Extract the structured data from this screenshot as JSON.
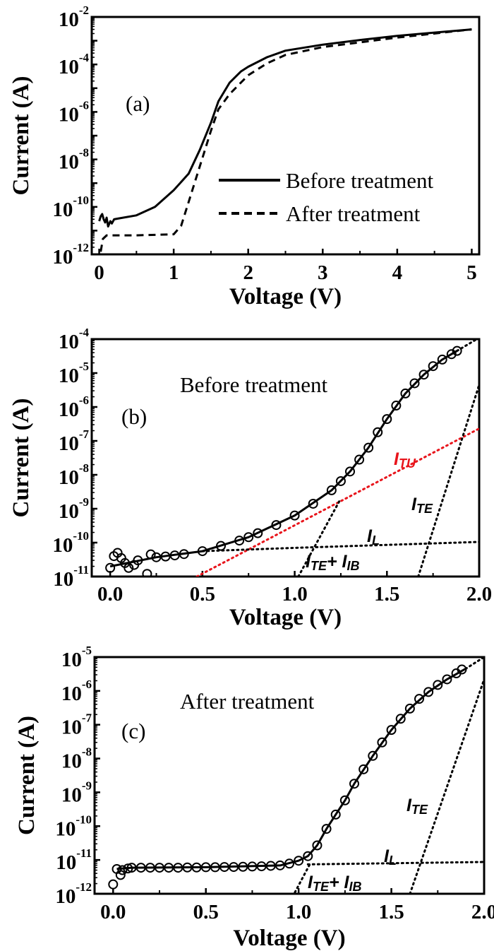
{
  "chart_data": [
    {
      "panel": "(a)",
      "type": "line",
      "xlabel": "Voltage (V)",
      "ylabel": "Current (A)",
      "xlim": [
        -0.1,
        5.1
      ],
      "ylim": [
        1e-12,
        0.01
      ],
      "yscale": "log",
      "xticks": [
        0,
        1,
        2,
        3,
        4,
        5
      ],
      "xtick_labels": [
        "0",
        "1",
        "2",
        "3",
        "4",
        "5"
      ],
      "yticks_exp": [
        -2,
        -4,
        -6,
        -8,
        -10,
        -12
      ],
      "grid": false,
      "legend": {
        "placement": "right-middle",
        "entries": [
          "Before treatment",
          "After treatment"
        ]
      },
      "series": [
        {
          "name": "Before treatment",
          "style": "solid",
          "color": "#000000",
          "x": [
            0.0,
            0.02,
            0.04,
            0.06,
            0.08,
            0.1,
            0.12,
            0.15,
            0.17,
            0.2,
            0.25,
            0.5,
            0.75,
            1.0,
            1.2,
            1.35,
            1.5,
            1.6,
            1.75,
            1.9,
            2.0,
            2.25,
            2.5,
            3.0,
            3.5,
            4.0,
            4.5,
            5.0
          ],
          "y": [
            2.5e-11,
            4e-11,
            5e-11,
            3e-11,
            2.2e-11,
            3.5e-11,
            1.5e-11,
            2.5e-11,
            2e-11,
            3e-11,
            3.2e-11,
            4.4e-11,
            1e-10,
            5e-10,
            2.5e-09,
            2.5e-08,
            3.5e-07,
            2.8e-06,
            1.7e-05,
            5e-05,
            8e-05,
            0.0002,
            0.00038,
            0.00068,
            0.00107,
            0.0016,
            0.0022,
            0.003
          ]
        },
        {
          "name": "After treatment",
          "style": "dashed",
          "color": "#000000",
          "x": [
            0.02,
            0.05,
            0.1,
            0.5,
            1.0,
            1.1,
            1.2,
            1.3,
            1.4,
            1.5,
            1.6,
            1.75,
            1.9,
            2.0,
            2.25,
            2.5,
            3.0,
            4.0,
            5.0
          ],
          "y": [
            1.3e-12,
            4.5e-12,
            6.3e-12,
            6.3e-12,
            7e-12,
            1.6e-11,
            1.6e-10,
            1.6e-09,
            1.6e-08,
            1.6e-07,
            1.3e-06,
            5.6e-06,
            1.7e-05,
            3.5e-05,
            0.00011,
            0.00025,
            0.00054,
            0.00135,
            0.003
          ]
        }
      ]
    },
    {
      "panel": "(b)",
      "type": "scatter",
      "title": "Before treatment",
      "xlabel": "Voltage (V)",
      "ylabel": "Current (A)",
      "xlim": [
        -0.1,
        2.0
      ],
      "ylim": [
        1e-11,
        0.0001
      ],
      "yscale": "log",
      "xticks": [
        0.0,
        0.5,
        1.0,
        1.5,
        2.0
      ],
      "xtick_labels": [
        "0.0",
        "0.5",
        "1.0",
        "1.5",
        "2.0"
      ],
      "yticks_exp": [
        -4,
        -5,
        -6,
        -7,
        -8,
        -9,
        -10,
        -11
      ],
      "grid": false,
      "measured": {
        "marker": "open-circle",
        "x": [
          0.0,
          0.02,
          0.04,
          0.06,
          0.08,
          0.1,
          0.13,
          0.15,
          0.2,
          0.22,
          0.25,
          0.3,
          0.35,
          0.4,
          0.5,
          0.6,
          0.7,
          0.75,
          0.8,
          0.9,
          1.0,
          1.1,
          1.2,
          1.25,
          1.3,
          1.35,
          1.4,
          1.45,
          1.5,
          1.55,
          1.6,
          1.65,
          1.7,
          1.75,
          1.8,
          1.85,
          1.88
        ],
        "y": [
          1.8e-11,
          4e-11,
          5e-11,
          3.5e-11,
          2.5e-11,
          1.8e-11,
          2.2e-11,
          3e-11,
          1.2e-11,
          4.5e-11,
          3.7e-11,
          3.9e-11,
          4.2e-11,
          4.6e-11,
          5.6e-11,
          8e-11,
          1.15e-10,
          1.45e-10,
          1.9e-10,
          3.3e-10,
          6.3e-10,
          1.4e-09,
          3.5e-09,
          6.5e-09,
          1.25e-08,
          2.8e-08,
          6.3e-08,
          1.8e-07,
          4.4e-07,
          1.1e-06,
          2.5e-06,
          5e-06,
          9e-06,
          1.6e-05,
          2.5e-05,
          3.6e-05,
          4.5e-05
        ]
      },
      "fit_total": {
        "style": "solid",
        "x": [
          0.0,
          0.25,
          0.5,
          0.75,
          1.0,
          1.2,
          1.3,
          1.4,
          1.5,
          1.6,
          1.7,
          1.8,
          1.88
        ],
        "y": [
          2e-11,
          3.7e-11,
          5.6e-11,
          1.45e-10,
          6.3e-10,
          3.5e-09,
          1.25e-08,
          6.3e-08,
          4.4e-07,
          2.5e-06,
          9e-06,
          2.5e-05,
          4.5e-05
        ],
        "extension": {
          "style": "dotted",
          "x": [
            1.88,
            2.0
          ],
          "y": [
            4.5e-05,
            0.00011
          ]
        }
      },
      "components": [
        {
          "label": "I_TU",
          "label_main": "I",
          "label_sub": "TU",
          "color": "#e8141b",
          "style": "dotted",
          "x": [
            0.47,
            2.0
          ],
          "y": [
            1e-11,
            2.3e-07
          ]
        },
        {
          "label": "I_TE",
          "label_main": "I",
          "label_sub": "TE",
          "color": "#000000",
          "style": "dotted",
          "x": [
            1.67,
            2.0
          ],
          "y": [
            1e-11,
            4.5e-06
          ]
        },
        {
          "label": "I_L",
          "label_main": "I",
          "label_sub": "L",
          "color": "#000000",
          "style": "dotted",
          "x": [
            0.5,
            1.0,
            2.0
          ],
          "y": [
            5.6e-11,
            7e-11,
            1.05e-10
          ]
        },
        {
          "label": "I_TE+I_IB",
          "label_main": "I",
          "label_sub": "TE",
          "label_main2": "+ I",
          "label_sub2": "IB",
          "color": "#000000",
          "style": "dotted",
          "x": [
            1.02,
            1.25
          ],
          "y": [
            1e-11,
            2e-09
          ]
        }
      ]
    },
    {
      "panel": "(c)",
      "type": "scatter",
      "title": "After treatment",
      "xlabel": "Voltage (V)",
      "ylabel": "Current (A)",
      "xlim": [
        -0.1,
        2.0
      ],
      "ylim": [
        1e-12,
        1e-05
      ],
      "yscale": "log",
      "xticks": [
        0.0,
        0.5,
        1.0,
        1.5,
        2.0
      ],
      "xtick_labels": [
        "0.0",
        "0.5",
        "1.0",
        "1.5",
        "2.0"
      ],
      "yticks_exp": [
        -5,
        -6,
        -7,
        -8,
        -9,
        -10,
        -11,
        -12
      ],
      "grid": false,
      "measured": {
        "marker": "open-circle",
        "x": [
          0.0,
          0.02,
          0.04,
          0.05,
          0.08,
          0.1,
          0.15,
          0.2,
          0.25,
          0.3,
          0.35,
          0.4,
          0.45,
          0.5,
          0.55,
          0.6,
          0.65,
          0.7,
          0.75,
          0.8,
          0.85,
          0.9,
          0.95,
          1.0,
          1.05,
          1.1,
          1.15,
          1.2,
          1.25,
          1.3,
          1.35,
          1.4,
          1.45,
          1.5,
          1.55,
          1.6,
          1.65,
          1.7,
          1.75,
          1.8,
          1.85,
          1.88
        ],
        "y": [
          1.9e-12,
          5.4e-12,
          3.6e-12,
          5e-12,
          5.6e-12,
          5.9e-12,
          5.9e-12,
          5.9e-12,
          5.9e-12,
          5.9e-12,
          5.9e-12,
          6e-12,
          6e-12,
          6.1e-12,
          6.1e-12,
          6.2e-12,
          6.2e-12,
          6.3e-12,
          6.4e-12,
          6.5e-12,
          6.7e-12,
          6.9e-12,
          7.8e-12,
          9.5e-12,
          1.3e-11,
          2.7e-11,
          8.3e-11,
          2.2e-10,
          5.8e-10,
          1.8e-09,
          4.8e-09,
          1.2e-08,
          3e-08,
          7e-08,
          1.5e-07,
          3e-07,
          5.8e-07,
          9.3e-07,
          1.5e-06,
          2.2e-06,
          3.3e-06,
          4.3e-06
        ]
      },
      "fit_total": {
        "style": "solid",
        "x": [
          0.02,
          0.1,
          0.5,
          0.9,
          1.0,
          1.05,
          1.1,
          1.15,
          1.2,
          1.25,
          1.3,
          1.4,
          1.5,
          1.6,
          1.7,
          1.8,
          1.9
        ],
        "y": [
          5.4e-12,
          5.9e-12,
          6.1e-12,
          6.9e-12,
          9.5e-12,
          1.3e-11,
          2.7e-11,
          8.3e-11,
          2.2e-10,
          5.8e-10,
          1.8e-09,
          1.2e-08,
          7e-08,
          3e-07,
          9.3e-07,
          2.2e-06,
          4.5e-06
        ],
        "extension": {
          "style": "dotted",
          "x": [
            1.9,
            2.0
          ],
          "y": [
            4.5e-06,
            1e-05
          ]
        }
      },
      "components": [
        {
          "label": "I_TE",
          "label_main": "I",
          "label_sub": "TE",
          "color": "#000000",
          "style": "dotted",
          "x": [
            1.6,
            2.0
          ],
          "y": [
            1e-12,
            2.2e-06
          ]
        },
        {
          "label": "I_L",
          "label_main": "I",
          "label_sub": "L",
          "color": "#000000",
          "style": "dotted",
          "x": [
            1.05,
            2.0
          ],
          "y": [
            7.4e-12,
            8.7e-12
          ]
        },
        {
          "label": "I_TE+I_IB",
          "label_main": "I",
          "label_sub": "TE",
          "label_main2": "+ I",
          "label_sub2": "IB",
          "color": "#000000",
          "style": "dotted",
          "x": [
            0.98,
            1.06
          ],
          "y": [
            1.1e-12,
            7.4e-12
          ]
        }
      ]
    }
  ]
}
